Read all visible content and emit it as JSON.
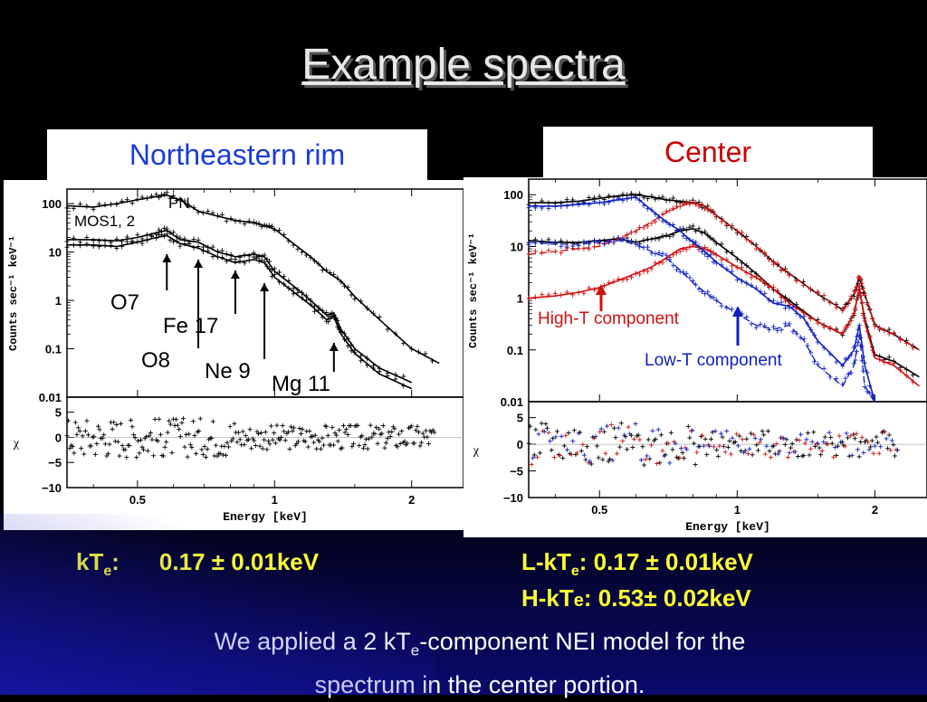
{
  "title": "Example spectra",
  "panels": {
    "left_label": "Northeastern rim",
    "right_label": "Center"
  },
  "annotations": {
    "left": {
      "pn": "PN",
      "mos": "MOS1, 2",
      "o7": "O7",
      "fe17": "Fe 17",
      "o8": "O8",
      "ne9": "Ne 9",
      "mg11": "Mg 11"
    },
    "right": {
      "high_t": "High-T component",
      "low_t": "Low-T component"
    }
  },
  "results": {
    "kte_prefix": "kT",
    "kte_sub": "e",
    "kte_colon": ":",
    "kte_value": "0.17 ± 0.01keV",
    "lkte_prefix": "L-kT",
    "lkte_sub": "e",
    "lkte_value": ": 0.17 ± 0.01keV",
    "hkte_prefix": "H-kT",
    "hkte_sub": "e",
    "hkte_value": ": 0.53± 0.02keV"
  },
  "caption": {
    "part1": "We applied a 2 kT",
    "sub": "e",
    "part2": "-component NEI model for the",
    "line2": "spectrum in the center portion."
  },
  "colors": {
    "high_t": "#d01010",
    "low_t": "#1020c0",
    "result_text": "#ffff33",
    "data": "#000000"
  },
  "chart_data": [
    {
      "type": "line",
      "title": "",
      "xlabel": "Energy [keV]",
      "ylabel": "Counts sec⁻¹ keV⁻¹",
      "resid_label": "χ",
      "yscale": "log",
      "xscale": "log",
      "xlim": [
        0.35,
        2.6
      ],
      "ylim": [
        0.01,
        200
      ],
      "resid_ylim": [
        -10,
        8
      ],
      "x_ticks": [
        0.5,
        1,
        2
      ],
      "x_tick_labels": [
        "0.5",
        "1",
        "2"
      ],
      "y_ticks": [
        0.01,
        0.1,
        1,
        10,
        100
      ],
      "y_tick_labels": [
        "0.01",
        "0.1",
        "1",
        "10",
        "100"
      ],
      "resid_ticks": [
        5,
        0,
        -5,
        -10
      ],
      "resid_tick_labels": [
        "5",
        "0",
        "−5",
        "−10"
      ],
      "series": [
        {
          "color": "#000000",
          "x": [
            0.35,
            0.4,
            0.45,
            0.5,
            0.55,
            0.58,
            0.62,
            0.68,
            0.75,
            0.82,
            0.9,
            0.95,
            1.0,
            1.1,
            1.2,
            1.3,
            1.4,
            1.5,
            1.7,
            2.0,
            2.3
          ],
          "y": [
            90,
            85,
            100,
            120,
            140,
            150,
            120,
            70,
            55,
            45,
            40,
            35,
            30,
            15,
            8,
            4,
            2.5,
            1.2,
            0.4,
            0.1,
            0.05
          ]
        },
        {
          "color": "#000000",
          "x": [
            0.35,
            0.4,
            0.45,
            0.5,
            0.55,
            0.58,
            0.62,
            0.68,
            0.75,
            0.82,
            0.9,
            0.95,
            1.0,
            1.1,
            1.2,
            1.3,
            1.35,
            1.4,
            1.5,
            1.7,
            2.0
          ],
          "y": [
            18,
            18,
            17,
            20,
            25,
            28,
            18,
            16,
            10,
            8,
            9,
            8,
            4,
            2,
            1,
            0.5,
            0.55,
            0.25,
            0.1,
            0.04,
            0.02
          ]
        },
        {
          "color": "#000000",
          "x": [
            0.35,
            0.4,
            0.45,
            0.5,
            0.55,
            0.58,
            0.62,
            0.68,
            0.75,
            0.82,
            0.9,
            0.95,
            1.0,
            1.1,
            1.2,
            1.3,
            1.35,
            1.4,
            1.5,
            1.7,
            2.0
          ],
          "y": [
            14,
            14,
            13,
            16,
            20,
            22,
            15,
            12,
            8,
            6,
            7,
            6,
            3,
            1.5,
            0.8,
            0.4,
            0.45,
            0.2,
            0.08,
            0.03,
            0.015
          ]
        }
      ]
    },
    {
      "type": "line",
      "title": "",
      "xlabel": "Energy [keV]",
      "ylabel": "Counts sec⁻¹ keV⁻¹",
      "resid_label": "χ",
      "yscale": "log",
      "xscale": "log",
      "xlim": [
        0.35,
        2.6
      ],
      "ylim": [
        0.01,
        200
      ],
      "resid_ylim": [
        -10,
        8
      ],
      "x_ticks": [
        0.5,
        1,
        2
      ],
      "x_tick_labels": [
        "0.5",
        "1",
        "2"
      ],
      "y_ticks": [
        0.01,
        0.1,
        1,
        10,
        100
      ],
      "y_tick_labels": [
        "0.01",
        "0.1",
        "1",
        "10",
        "100"
      ],
      "resid_ticks": [
        5,
        0,
        -5,
        -10
      ],
      "resid_tick_labels": [
        "5",
        "0",
        "−5",
        "−10"
      ],
      "series": [
        {
          "color": "#000000",
          "x": [
            0.35,
            0.4,
            0.45,
            0.5,
            0.55,
            0.6,
            0.65,
            0.7,
            0.75,
            0.8,
            0.85,
            0.9,
            1.0,
            1.1,
            1.2,
            1.3,
            1.5,
            1.7,
            1.8,
            1.85,
            1.9,
            2.0,
            2.2,
            2.5
          ],
          "y": [
            70,
            70,
            75,
            85,
            95,
            100,
            90,
            80,
            75,
            70,
            60,
            40,
            20,
            10,
            5,
            3,
            1.2,
            0.6,
            1.2,
            2.5,
            1.2,
            0.3,
            0.2,
            0.1
          ]
        },
        {
          "color": "#000000",
          "x": [
            0.35,
            0.4,
            0.45,
            0.5,
            0.55,
            0.6,
            0.65,
            0.7,
            0.75,
            0.8,
            0.85,
            0.9,
            1.0,
            1.1,
            1.2,
            1.3,
            1.5,
            1.7,
            1.8,
            1.85,
            1.9,
            2.0,
            2.2,
            2.5
          ],
          "y": [
            13,
            12,
            12,
            13,
            14,
            12,
            14,
            16,
            20,
            22,
            18,
            12,
            6,
            3,
            1.5,
            0.9,
            0.35,
            0.2,
            0.5,
            1.5,
            0.4,
            0.08,
            0.06,
            0.03
          ]
        },
        {
          "color": "#d01010",
          "x": [
            0.35,
            0.4,
            0.45,
            0.5,
            0.55,
            0.6,
            0.65,
            0.7,
            0.75,
            0.8,
            0.85,
            0.9,
            1.0,
            1.1,
            1.2,
            1.3,
            1.5,
            1.7,
            1.8,
            1.85,
            1.9,
            2.0,
            2.2,
            2.5
          ],
          "y": [
            1,
            1.1,
            1.3,
            1.6,
            2.2,
            3,
            4,
            6,
            9,
            10,
            9,
            7,
            4,
            2.5,
            1.5,
            0.8,
            0.35,
            0.2,
            0.5,
            1.6,
            0.35,
            0.07,
            0.05,
            0.02
          ]
        },
        {
          "color": "#d01010",
          "x": [
            0.35,
            0.4,
            0.45,
            0.5,
            0.55,
            0.6,
            0.65,
            0.7,
            0.75,
            0.8,
            0.85,
            0.9,
            1.0,
            1.1,
            1.2,
            1.3,
            1.5,
            1.7,
            1.8,
            1.85,
            1.9,
            2.0,
            2.2,
            2.5
          ],
          "y": [
            7,
            8,
            9,
            10,
            14,
            20,
            30,
            45,
            60,
            70,
            60,
            40,
            20,
            10,
            5,
            3,
            1.2,
            0.6,
            1.2,
            2.8,
            1.2,
            0.3,
            0.2,
            0.1
          ]
        },
        {
          "color": "#1020c0",
          "x": [
            0.35,
            0.4,
            0.45,
            0.5,
            0.55,
            0.6,
            0.65,
            0.7,
            0.75,
            0.8,
            0.85,
            0.9,
            1.0,
            1.1,
            1.2,
            1.3,
            1.4,
            1.5,
            1.7,
            1.8,
            1.85,
            1.9,
            2.0
          ],
          "y": [
            60,
            60,
            65,
            70,
            80,
            90,
            50,
            30,
            20,
            12,
            8,
            5,
            2.5,
            1.5,
            0.8,
            0.7,
            0.4,
            0.15,
            0.05,
            0.1,
            0.3,
            0.05,
            0.01
          ]
        },
        {
          "color": "#1020c0",
          "x": [
            0.35,
            0.4,
            0.45,
            0.5,
            0.55,
            0.6,
            0.65,
            0.7,
            0.75,
            0.8,
            0.85,
            0.9,
            1.0,
            1.1,
            1.2,
            1.3,
            1.4,
            1.5,
            1.7,
            1.8,
            1.85,
            1.9,
            2.0
          ],
          "y": [
            12,
            11,
            11,
            12,
            13,
            11,
            8,
            6,
            3.5,
            2,
            1.3,
            0.9,
            0.5,
            0.3,
            0.25,
            0.3,
            0.15,
            0.05,
            0.02,
            0.05,
            0.2,
            0.02,
            0.01
          ]
        }
      ]
    }
  ]
}
